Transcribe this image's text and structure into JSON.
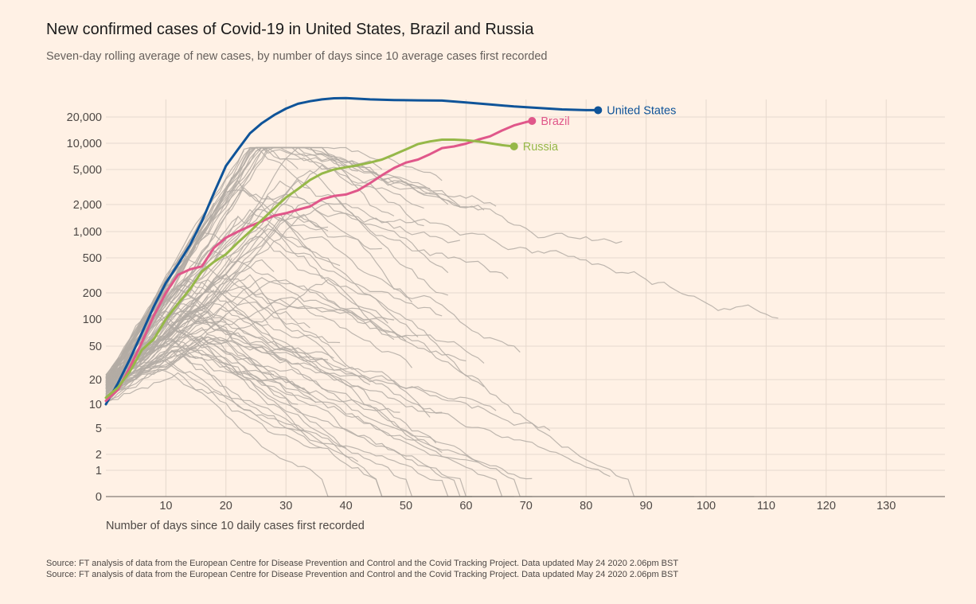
{
  "chart_data": {
    "type": "line",
    "title": "New confirmed cases of Covid-19 in United States, Brazil and Russia",
    "subtitle": "Seven-day rolling average of new cases, by number of days since 10 average cases first recorded",
    "xlabel": "Number of days since 10 daily cases first recorded",
    "ylabel": "",
    "y_scale": "log",
    "xlim": [
      0,
      140
    ],
    "x_ticks": [
      10,
      20,
      30,
      40,
      50,
      60,
      70,
      80,
      90,
      100,
      110,
      120,
      130
    ],
    "y_ticks": [
      0,
      1,
      2,
      5,
      10,
      20,
      50,
      100,
      200,
      500,
      1000,
      2000,
      5000,
      10000,
      20000
    ],
    "y_tick_labels": [
      "0",
      "1",
      "2",
      "5",
      "10",
      "20",
      "50",
      "100",
      "200",
      "500",
      "1,000",
      "2,000",
      "5,000",
      "10,000",
      "20,000"
    ],
    "grid": true,
    "series": [
      {
        "name": "United States",
        "color": "#0f5499",
        "highlight": true,
        "x": [
          0,
          2,
          4,
          6,
          8,
          10,
          12,
          14,
          16,
          18,
          20,
          22,
          24,
          26,
          28,
          30,
          32,
          34,
          36,
          38,
          40,
          44,
          48,
          52,
          56,
          60,
          64,
          68,
          72,
          76,
          80,
          82
        ],
        "y": [
          10,
          18,
          35,
          70,
          140,
          260,
          420,
          700,
          1300,
          2700,
          5500,
          8500,
          13000,
          17000,
          21000,
          25000,
          28500,
          30500,
          32000,
          33000,
          33200,
          32000,
          31500,
          31200,
          31000,
          29500,
          28000,
          26500,
          25500,
          24500,
          24000,
          24000
        ]
      },
      {
        "name": "Brazil",
        "color": "#e0578a",
        "highlight": true,
        "x": [
          0,
          2,
          4,
          6,
          8,
          10,
          12,
          14,
          16,
          18,
          20,
          22,
          24,
          26,
          28,
          30,
          32,
          34,
          36,
          38,
          40,
          42,
          44,
          46,
          48,
          50,
          52,
          54,
          56,
          58,
          60,
          62,
          64,
          66,
          68,
          70,
          71
        ],
        "y": [
          11,
          15,
          28,
          55,
          110,
          200,
          320,
          370,
          400,
          650,
          850,
          1000,
          1150,
          1300,
          1500,
          1600,
          1750,
          1900,
          2300,
          2500,
          2600,
          2900,
          3500,
          4300,
          5200,
          6000,
          6500,
          7500,
          8800,
          9200,
          9900,
          11000,
          12000,
          14000,
          16000,
          17500,
          18000
        ]
      },
      {
        "name": "Russia",
        "color": "#96b849",
        "highlight": true,
        "x": [
          0,
          2,
          4,
          6,
          8,
          10,
          12,
          14,
          16,
          18,
          20,
          22,
          24,
          26,
          28,
          30,
          32,
          34,
          36,
          38,
          40,
          42,
          44,
          46,
          48,
          50,
          52,
          54,
          56,
          58,
          60,
          62,
          64,
          66,
          68
        ],
        "y": [
          12,
          16,
          25,
          45,
          60,
          100,
          150,
          220,
          350,
          450,
          550,
          750,
          1000,
          1350,
          1800,
          2400,
          3000,
          3800,
          4500,
          5000,
          5300,
          5600,
          6000,
          6500,
          7400,
          8500,
          9800,
          10500,
          11000,
          11000,
          10800,
          10500,
          10000,
          9500,
          9200
        ]
      }
    ],
    "annotations": [
      {
        "series": "United States",
        "label": "United States"
      },
      {
        "series": "Brazil",
        "label": "Brazil"
      },
      {
        "series": "Russia",
        "label": "Russia"
      }
    ],
    "background_series_note": "Other countries shown as thin grey lines",
    "background_color": "#b3aca5"
  },
  "footer": {
    "source_line_1": "Source: FT analysis of data from the European Centre for Disease Prevention and Control and the Covid Tracking Project. Data updated May 24 2020 2.06pm BST",
    "source_line_2": "Source: FT analysis of data from the European Centre for Disease Prevention and Control and the Covid Tracking Project. Data updated May 24 2020 2.06pm BST"
  }
}
